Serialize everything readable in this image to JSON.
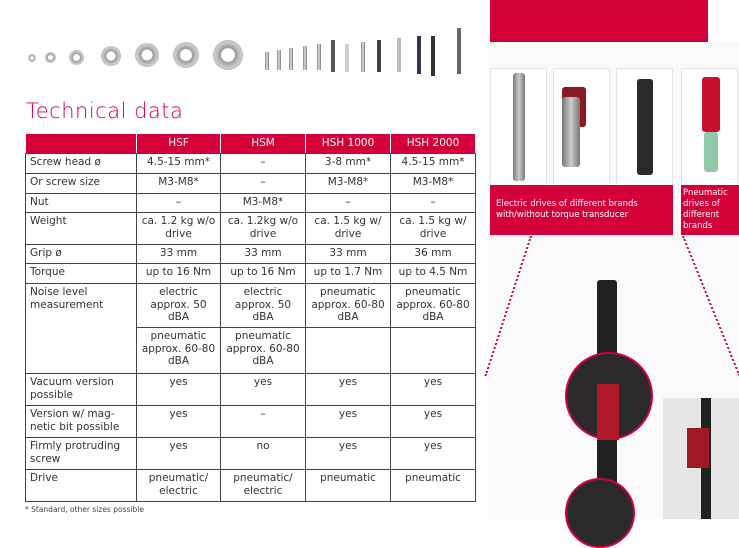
{
  "title": "Technical data",
  "table": {
    "headers": [
      "",
      "HSF",
      "HSM",
      "HSH 1000",
      "HSH 2000"
    ],
    "rows": [
      {
        "label": "Screw head ø",
        "values": [
          "4.5-15 mm*",
          "–",
          "3-8 mm*",
          "4.5-15 mm*"
        ]
      },
      {
        "label": "Or screw size",
        "values": [
          "M3-M8*",
          "–",
          "M3-M8*",
          "M3-M8*"
        ]
      },
      {
        "label": "Nut",
        "values": [
          "–",
          "M3-M8*",
          "–",
          "–"
        ]
      },
      {
        "label": "Weight",
        "values": [
          "ca. 1.2 kg w/o drive",
          "ca. 1.2kg w/o drive",
          "ca. 1.5 kg w/ drive",
          "ca. 1.5 kg w/ drive"
        ]
      },
      {
        "label": "Grip ø",
        "values": [
          "33 mm",
          "33 mm",
          "33 mm",
          "36 mm"
        ]
      },
      {
        "label": "Torque",
        "values": [
          "up to 16 Nm",
          "up to 16 Nm",
          "up to 1.7 Nm",
          "up to 4.5 Nm"
        ]
      },
      {
        "label": "Noise level measurement",
        "values": [
          "electric approx. 50 dBA",
          "electric approx. 50 dBA",
          "pneumatic approx. 60-80 dBA",
          "pneumatic approx. 60-80 dBA"
        ],
        "values2": [
          "pneumatic approx. 60-80 dBA",
          "pneumatic approx. 60-80 dBA",
          "",
          ""
        ]
      },
      {
        "label": "Vacuum version possible",
        "values": [
          "yes",
          "yes",
          "yes",
          "yes"
        ]
      },
      {
        "label": "Version w/ mag-netic bit possible",
        "values": [
          "yes",
          "–",
          "yes",
          "yes"
        ]
      },
      {
        "label": "Firmly protruding screw",
        "values": [
          "yes",
          "no",
          "yes",
          "yes"
        ]
      },
      {
        "label": "Drive",
        "values": [
          "pneumatic/ electric",
          "pneumatic/ electric",
          "pneumatic",
          "pneumatic"
        ]
      }
    ]
  },
  "footnote": "* Standard, other sizes possible",
  "captions": {
    "electric": "Electric drives of different brands with/without torque transducer",
    "pneumatic": "Pneumatic drives of different brands"
  },
  "colors": {
    "accent": "#d4003a",
    "border": "#444444"
  }
}
